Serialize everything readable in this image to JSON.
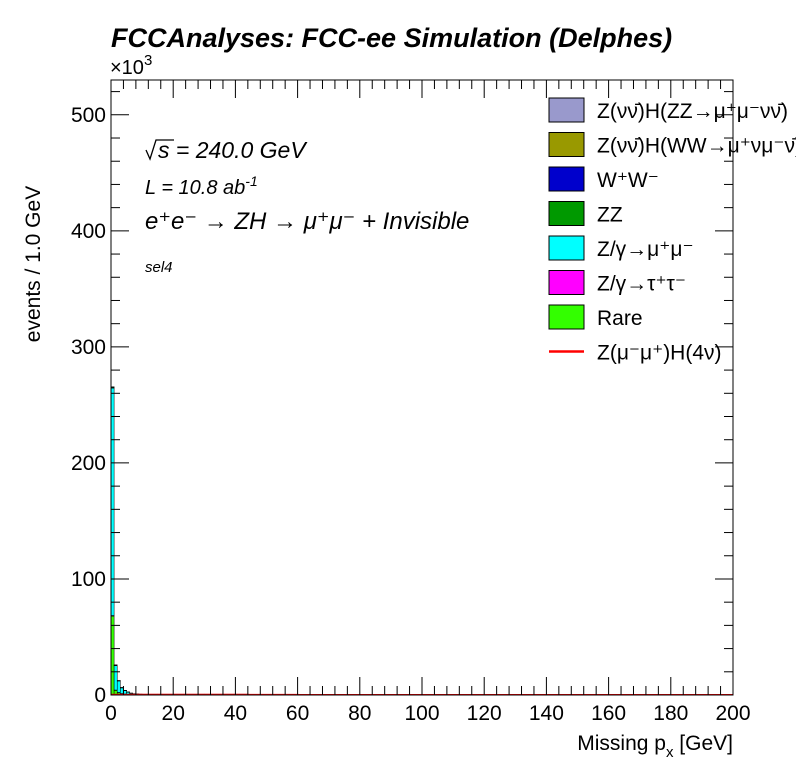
{
  "chart_data": {
    "type": "stacked-histogram",
    "title": "FCCAnalyses: FCC-ee Simulation (Delphes)",
    "xlabel_main": "Missing p",
    "xlabel_sub": "x",
    "xlabel_unit": " [GeV]",
    "ylabel": "events / 1.0 GeV",
    "y_multiplier": "×10",
    "y_multiplier_exp": "3",
    "xlim": [
      0,
      200
    ],
    "ylim": [
      0,
      530
    ],
    "x_ticks": [
      "0",
      "20",
      "40",
      "60",
      "80",
      "100",
      "120",
      "140",
      "160",
      "180",
      "200"
    ],
    "y_ticks": [
      "0",
      "100",
      "200",
      "300",
      "400",
      "500"
    ],
    "annotations": {
      "sqrt_s": "s = 240.0 GeV",
      "lumi": "L = 10.8 ab",
      "lumi_exp": "-1",
      "process": "e⁺e⁻ → ZH → μ⁺μ⁻ + Invisible",
      "selection": "sel4"
    },
    "bins_x": [
      0,
      1,
      2,
      3,
      4,
      5,
      6,
      7,
      8,
      9,
      10,
      12,
      15,
      20,
      30,
      44,
      60,
      200
    ],
    "series": [
      {
        "name": "Rare",
        "color": "#33ff00",
        "values": [
          68,
          4,
          2,
          1.2,
          0.8,
          0.5,
          0.3,
          0.2,
          0.2,
          0.1,
          0.1,
          0.1,
          0.1,
          0.1,
          0.1,
          0,
          0
        ]
      },
      {
        "name": "Z/γ→τ⁺τ⁻",
        "color": "#ff00ff",
        "values": [
          0.5,
          0.3,
          0.2,
          0.1,
          0.1,
          0.1,
          0,
          0,
          0,
          0,
          0,
          0,
          0,
          0,
          0,
          0,
          0
        ]
      },
      {
        "name": "Z/γ→μ⁺μ⁻",
        "color": "#00ffff",
        "values": [
          196,
          21,
          10,
          5,
          3,
          2,
          1.3,
          1,
          0.8,
          0.7,
          0.6,
          0.6,
          0.6,
          0.6,
          0.6,
          0.2,
          0.1
        ]
      },
      {
        "name": "ZZ",
        "color": "#009900",
        "values": [
          0.6,
          0.3,
          0.2,
          0.1,
          0.1,
          0.1,
          0.1,
          0,
          0,
          0,
          0,
          0,
          0,
          0,
          0,
          0,
          0
        ]
      },
      {
        "name": "W⁺W⁻",
        "color": "#0000cc",
        "values": [
          0.3,
          0.2,
          0.1,
          0.1,
          0.1,
          0,
          0,
          0,
          0,
          0,
          0,
          0,
          0,
          0,
          0,
          0,
          0
        ]
      },
      {
        "name": "Z(νν̄)H(WW→μ⁺νμ⁻ν̄)",
        "color": "#999900",
        "values": [
          0.1,
          0.1,
          0,
          0,
          0,
          0,
          0,
          0,
          0,
          0,
          0,
          0,
          0,
          0,
          0,
          0,
          0
        ]
      },
      {
        "name": "Z(νν̄)H(ZZ→μ⁺μ⁻νν̄)",
        "color": "#9999cc",
        "values": [
          0.1,
          0.1,
          0,
          0,
          0,
          0,
          0,
          0,
          0,
          0,
          0,
          0,
          0,
          0,
          0,
          0,
          0
        ]
      }
    ],
    "signal": {
      "name": "Z(μ⁻μ⁺)H(4ν)",
      "color": "#ff0000",
      "values": [
        0.2,
        0.2,
        0.2,
        0.2,
        0.2,
        0.2,
        0.2,
        0.2,
        0.2,
        0.2,
        0.2,
        0.2,
        0.2,
        0.2,
        0.2,
        0.1,
        0
      ]
    },
    "legend": [
      {
        "label": "Z(νν̄)H(ZZ→μ⁺μ⁻νν̄)",
        "color": "#9999cc",
        "kind": "box"
      },
      {
        "label": "Z(νν̄)H(WW→μ⁺νμ⁻ν̄)",
        "color": "#999900",
        "kind": "box"
      },
      {
        "label": "W⁺W⁻",
        "color": "#0000cc",
        "kind": "box"
      },
      {
        "label": "ZZ",
        "color": "#009900",
        "kind": "box"
      },
      {
        "label": "Z/γ→μ⁺μ⁻",
        "color": "#00ffff",
        "kind": "box"
      },
      {
        "label": "Z/γ→τ⁺τ⁻",
        "color": "#ff00ff",
        "kind": "box"
      },
      {
        "label": "Rare",
        "color": "#33ff00",
        "kind": "box"
      },
      {
        "label": "Z(μ⁻μ⁺)H(4ν)",
        "color": "#ff0000",
        "kind": "line"
      }
    ],
    "legend_position": "top-right",
    "grid": false
  }
}
